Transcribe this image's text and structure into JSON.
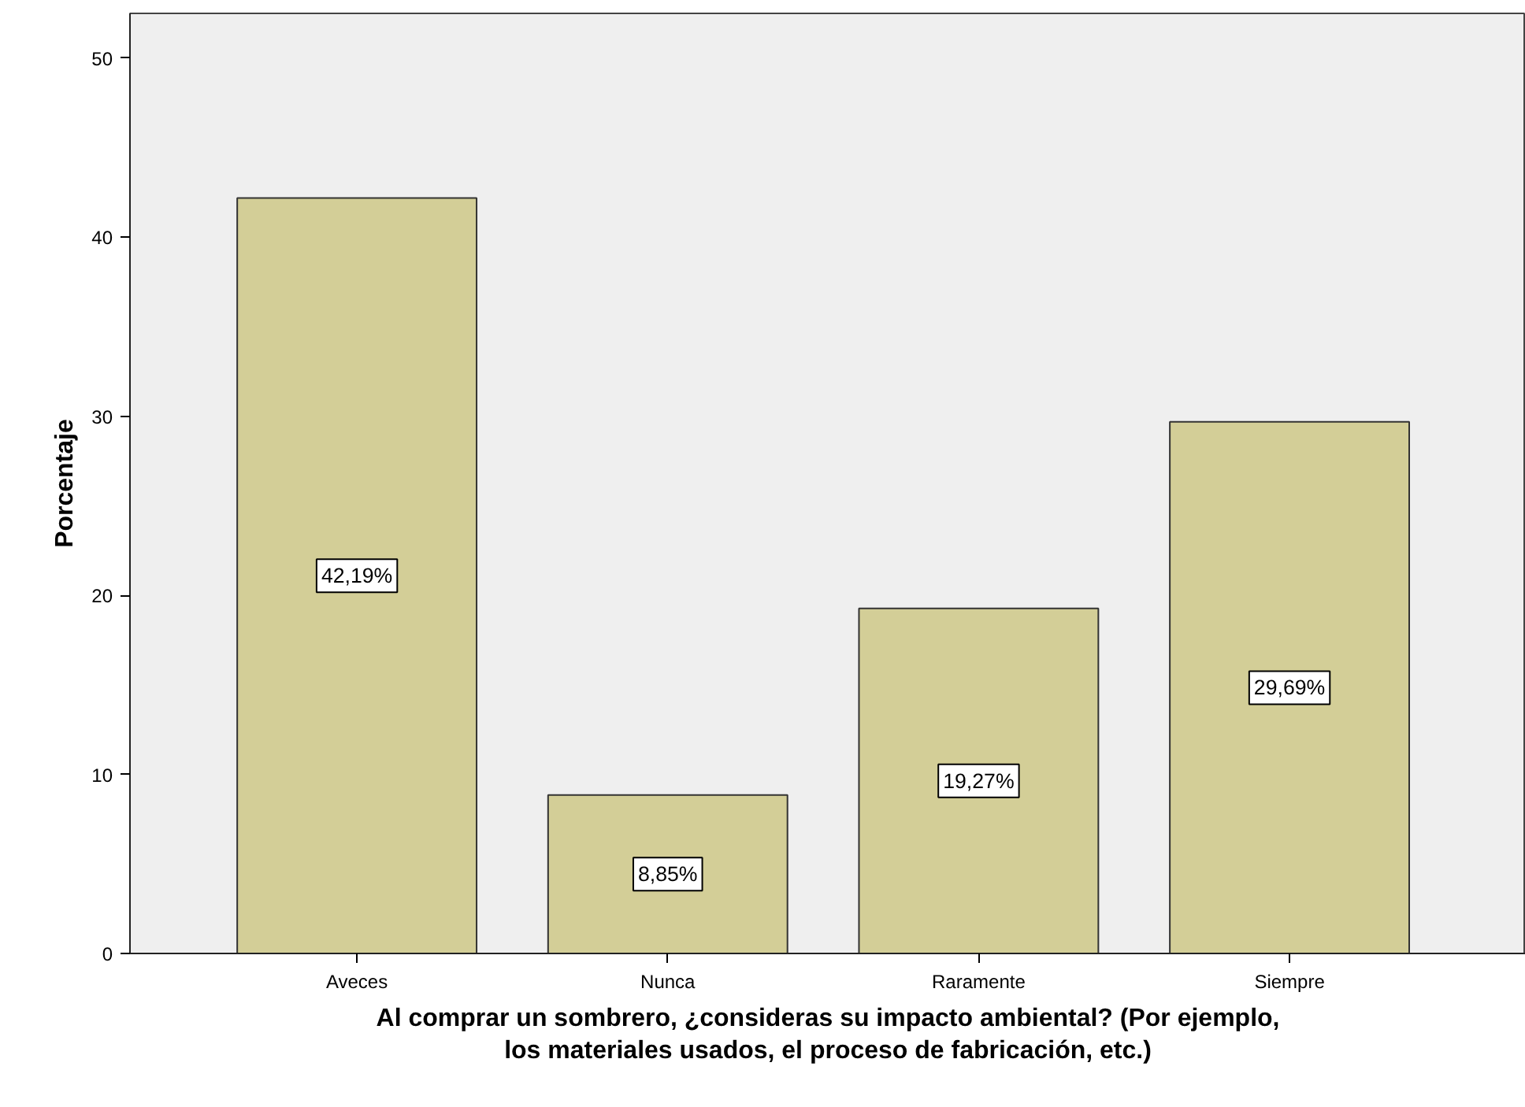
{
  "chart_data": {
    "type": "bar",
    "xlabel": "Al comprar un sombrero, ¿consideras su impacto ambiental? (Por ejemplo,\nlos materiales usados, el proceso de fabricación, etc.)",
    "ylabel": "Porcentaje",
    "categories": [
      "Aveces",
      "Nunca",
      "Raramente",
      "Siempre"
    ],
    "values": [
      42.19,
      8.85,
      19.27,
      29.69
    ],
    "value_labels": [
      "42,19%",
      "8,85%",
      "19,27%",
      "29,69%"
    ],
    "color": "#d3ce97",
    "ylim": [
      0,
      52.5
    ],
    "yticks": [
      0,
      10,
      20,
      30,
      40,
      50
    ],
    "grid": false
  }
}
